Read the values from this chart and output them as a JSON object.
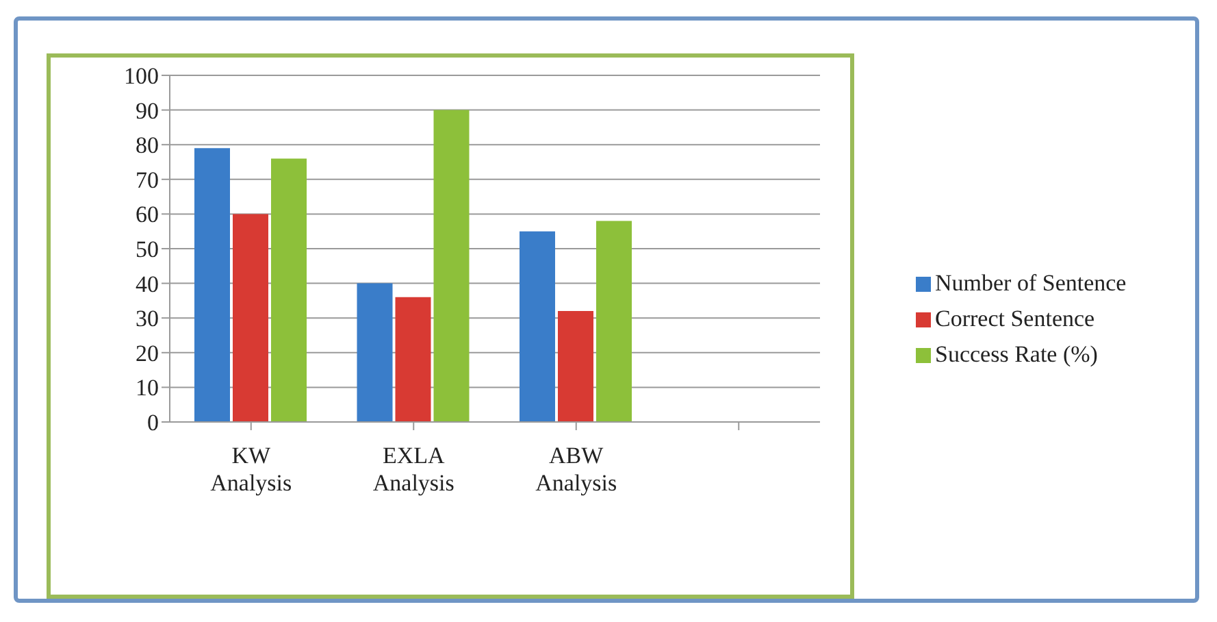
{
  "chart_data": {
    "type": "bar",
    "categories": [
      "KW Analysis",
      "EXLA Analysis",
      "ABW Analysis",
      null
    ],
    "series": [
      {
        "name": "Number of Sentence",
        "color": "#3a7dc9",
        "values": [
          79,
          40,
          55,
          null
        ]
      },
      {
        "name": "Correct Sentence",
        "color": "#d83a33",
        "values": [
          60,
          36,
          32,
          null
        ]
      },
      {
        "name": "Success Rate (%)",
        "color": "#8dc03a",
        "values": [
          76,
          90,
          58,
          null
        ]
      }
    ],
    "ylim": [
      0,
      100
    ],
    "yticks": [
      0,
      10,
      20,
      30,
      40,
      50,
      60,
      70,
      80,
      90,
      100
    ],
    "grid": "y",
    "legend": "right"
  }
}
